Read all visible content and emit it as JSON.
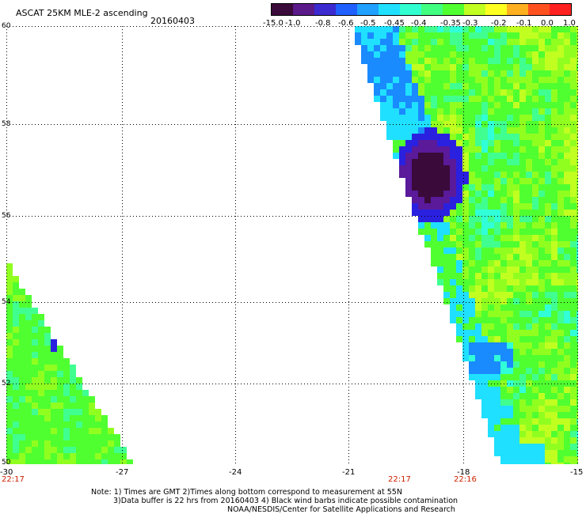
{
  "header": {
    "title": "ASCAT 25KM MLE-2 ascending",
    "date": "20160403"
  },
  "colorbar": {
    "labels": [
      "-15.0",
      "-1.0",
      "-0.8",
      "-0.6",
      "-0.5",
      "-0.45",
      "-0.4",
      "-0.35",
      "-0.3",
      "-0.2",
      "-0.1",
      "0.0",
      "1.0"
    ],
    "colors": [
      "#3a0a3a",
      "#5a1a8a",
      "#3a2ad0",
      "#2060ff",
      "#20a0ff",
      "#20e0ff",
      "#30ffd0",
      "#40ff80",
      "#50ff30",
      "#c0ff20",
      "#ffff20",
      "#ffb020",
      "#ff5020",
      "#ff2020"
    ]
  },
  "map": {
    "y_labels": [
      "60",
      "58",
      "56",
      "54",
      "52",
      "50"
    ],
    "x_labels": [
      "-30",
      "-27",
      "-24",
      "-21",
      "-18",
      "-15"
    ],
    "time_labels": [
      "22:17",
      "22:17",
      "22:16"
    ]
  },
  "footer": {
    "line1": "Note: 1) Times are GMT 2)Times along bottom correspond to measurement at 55N",
    "line2": "3)Data buffer is 22 hrs from 20160403 4) Black wind barbs indicate possible contamination",
    "line3": "NOAA/NESDIS/Center for Satellite Applications and Research"
  }
}
